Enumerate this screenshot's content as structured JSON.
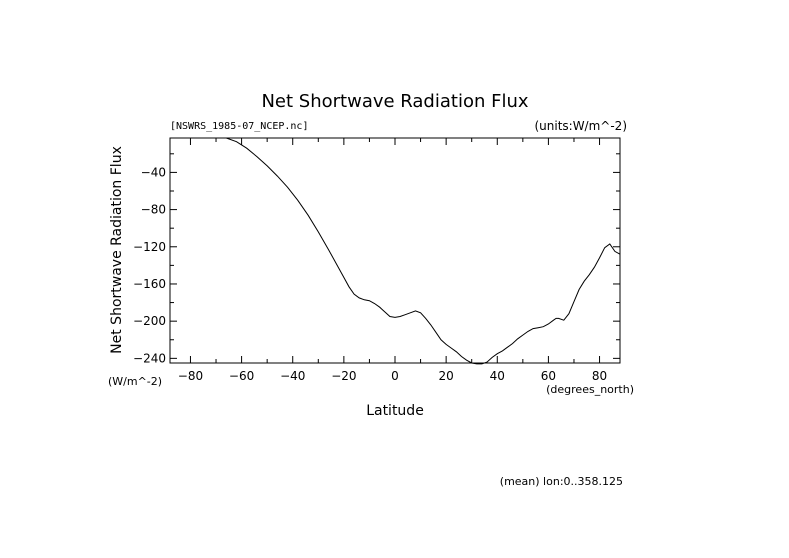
{
  "header": {
    "source_file": "[NSWRS_1985-07_NCEP.nc]",
    "units_note": "(units:W/m^-2)"
  },
  "footer": {
    "mean_note": "(mean) lon:0..358.125"
  },
  "chart_data": {
    "type": "line",
    "title": "Net Shortwave Radiation Flux",
    "xlabel": "Latitude",
    "xunit": "(degrees_north)",
    "ylabel": "Net Shortwave Radiation Flux",
    "yunit": "(W/m^-2)",
    "xlim": [
      -88,
      88
    ],
    "ylim": [
      -245,
      -3
    ],
    "x_ticks": [
      -80,
      -60,
      -40,
      -20,
      0,
      20,
      40,
      60,
      80
    ],
    "y_ticks": [
      -40,
      -80,
      -120,
      -160,
      -200,
      -240
    ],
    "grid": false,
    "series": [
      {
        "x": [
          -66,
          -62,
          -58,
          -54,
          -50,
          -46,
          -42,
          -38,
          -34,
          -30,
          -26,
          -22,
          -20,
          -18,
          -16,
          -14,
          -12,
          -10,
          -8,
          -6,
          -4,
          -2,
          0,
          2,
          4,
          6,
          8,
          10,
          12,
          14,
          16,
          18,
          20,
          22,
          24,
          26,
          28,
          30,
          32,
          34,
          36,
          38,
          40,
          42,
          44,
          46,
          48,
          50,
          52,
          54,
          56,
          58,
          60,
          62,
          63,
          64,
          66,
          68,
          70,
          72,
          74,
          76,
          78,
          80,
          82,
          84,
          86,
          88
        ],
        "values": [
          -3,
          -7,
          -14,
          -23,
          -33,
          -44,
          -56,
          -70,
          -86,
          -104,
          -123,
          -143,
          -153,
          -163,
          -171,
          -175,
          -177,
          -178,
          -181,
          -185,
          -190,
          -195,
          -196,
          -195,
          -193,
          -191,
          -189,
          -191,
          -197,
          -204,
          -212,
          -220,
          -225,
          -229,
          -233,
          -238,
          -242,
          -245,
          -246,
          -246,
          -244,
          -239,
          -235,
          -232,
          -228,
          -224,
          -219,
          -215,
          -211,
          -208,
          -207,
          -206,
          -203,
          -199,
          -197,
          -197,
          -199,
          -192,
          -179,
          -166,
          -157,
          -150,
          -142,
          -132,
          -121,
          -117,
          -125,
          -128
        ]
      }
    ]
  }
}
